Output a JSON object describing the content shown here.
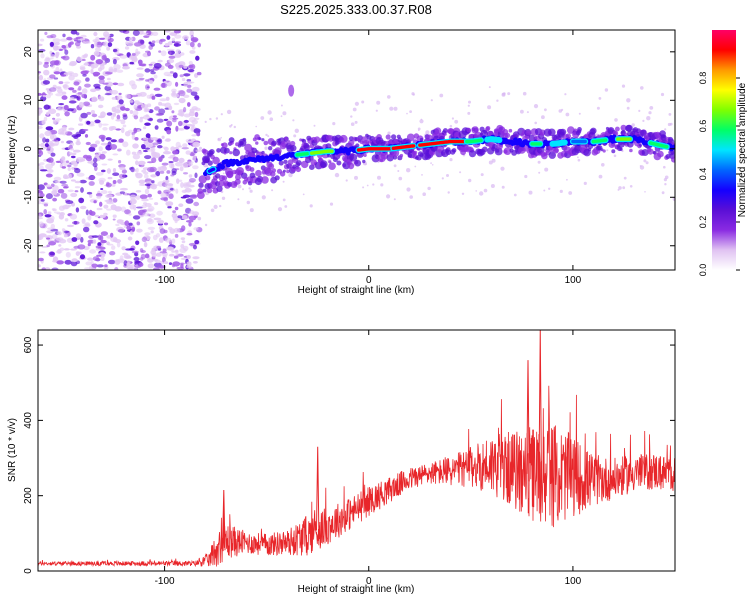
{
  "figure": {
    "title": "S225.2025.333.00.37.R08"
  },
  "chart_data": [
    {
      "type": "heatmap",
      "xlabel": "Height of straight line (km)",
      "ylabel": "Frequency (Hz)",
      "xlim": [
        -162,
        150
      ],
      "ylim": [
        -25,
        24.5
      ],
      "xticks": [
        -100,
        0,
        100
      ],
      "yticks": [
        -20,
        -10,
        0,
        10,
        20
      ],
      "colorbar": {
        "label": "Normalized spectral amplitude",
        "range": [
          0,
          1
        ],
        "ticks": [
          0.0,
          0.2,
          0.4,
          0.6,
          0.8
        ],
        "colors": [
          "#ffffff",
          "#e0c2f2",
          "#8a2be2",
          "#5a0fd6",
          "#1400ff",
          "#0066ff",
          "#00e5ff",
          "#00ff66",
          "#7fff00",
          "#ffff00",
          "#ff9900",
          "#ff0000",
          "#ff0066"
        ]
      },
      "noise_region": {
        "x": [
          -162,
          -83
        ],
        "y": [
          -25,
          24.5
        ]
      },
      "ridge": {
        "x": [
          -80,
          -70,
          -60,
          -50,
          -40,
          -30,
          -20,
          -10,
          0,
          10,
          20,
          30,
          40,
          50,
          60,
          70,
          80,
          90,
          100,
          110,
          120,
          130,
          140,
          150
        ],
        "y": [
          -5,
          -3,
          -2.5,
          -2,
          -1.5,
          -1,
          -0.5,
          -0.5,
          0,
          0,
          0.5,
          1,
          1.5,
          1.5,
          2,
          1.5,
          1,
          1,
          1.5,
          1.5,
          2,
          2,
          1,
          0
        ]
      },
      "isolated_feature": {
        "x": -38,
        "y": 12
      }
    },
    {
      "type": "line",
      "xlabel": "Height of straight line (km)",
      "ylabel": "SNR (10 * v/v)",
      "xlim": [
        -162,
        150
      ],
      "ylim": [
        0,
        640
      ],
      "xticks": [
        -100,
        0,
        100
      ],
      "yticks": [
        0,
        200,
        400,
        600
      ],
      "series_color": "#e8262a",
      "envelope": {
        "x": [
          -162,
          -120,
          -85,
          -78,
          -75,
          -70,
          -60,
          -50,
          -40,
          -30,
          -20,
          -10,
          0,
          10,
          20,
          30,
          40,
          50,
          60,
          70,
          80,
          90,
          100,
          110,
          120,
          130,
          140,
          150
        ],
        "baseline": [
          20,
          20,
          20,
          30,
          55,
          80,
          75,
          70,
          75,
          95,
          120,
          150,
          185,
          215,
          245,
          260,
          265,
          275,
          285,
          270,
          255,
          255,
          250,
          240,
          245,
          260,
          265,
          255
        ],
        "spread": [
          5,
          6,
          7,
          20,
          45,
          50,
          30,
          30,
          35,
          55,
          50,
          45,
          40,
          35,
          30,
          30,
          40,
          55,
          80,
          100,
          130,
          140,
          110,
          70,
          55,
          50,
          50,
          45
        ]
      },
      "spikes": [
        {
          "x": -71,
          "y": 215
        },
        {
          "x": -25,
          "y": 330
        },
        {
          "x": 84,
          "y": 640
        },
        {
          "x": 78,
          "y": 560
        }
      ]
    }
  ]
}
